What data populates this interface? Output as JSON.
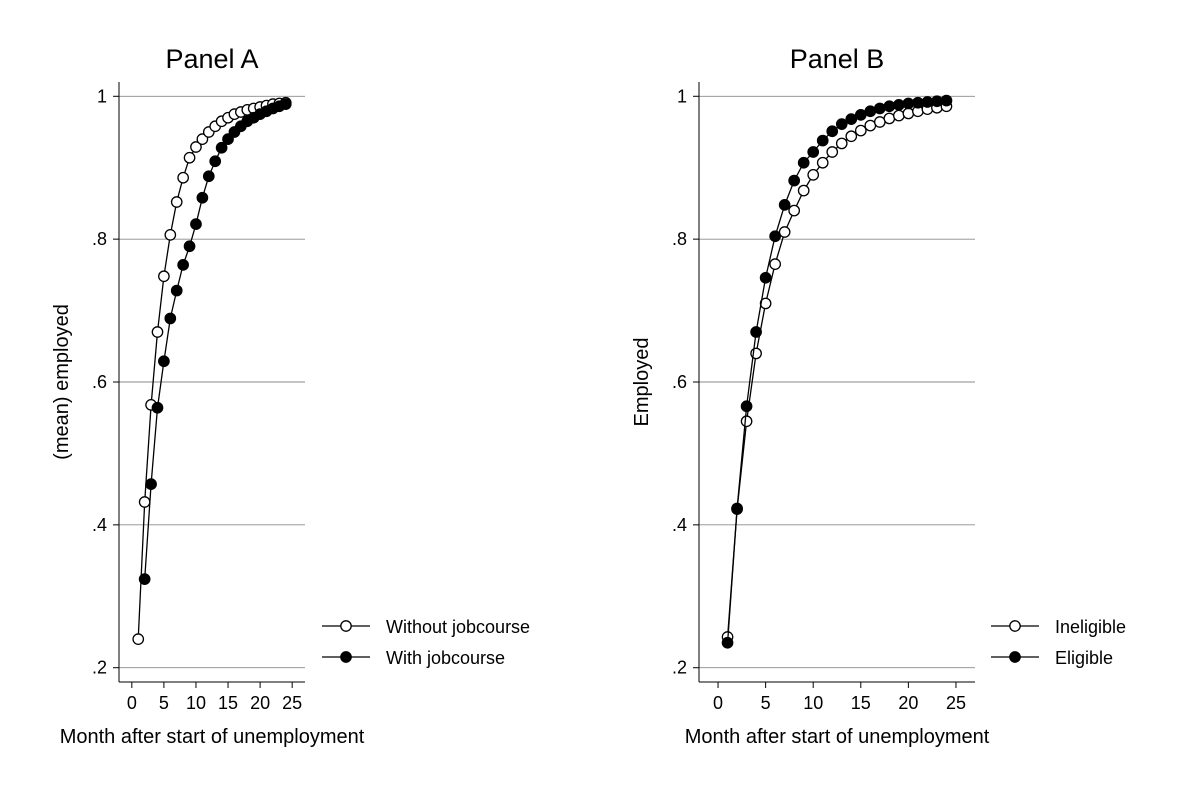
{
  "chart_data": [
    {
      "type": "line",
      "title": "Panel A",
      "xlabel": "Month after start of unemployment",
      "ylabel": "(mean) employed",
      "xlim": [
        -2,
        27
      ],
      "ylim": [
        0.18,
        1.02
      ],
      "xticks": [
        0,
        5,
        10,
        15,
        20,
        25
      ],
      "xtick_labels": [
        "0",
        "5",
        "10",
        "15",
        "20",
        "25"
      ],
      "yticks": [
        0.2,
        0.4,
        0.6,
        0.8,
        1.0
      ],
      "ytick_labels": [
        ".2",
        ".4",
        ".6",
        ".8",
        "1"
      ],
      "grid": true,
      "legend_position": "right",
      "series": [
        {
          "name": "Without jobcourse",
          "marker": "hollow-circle",
          "x": [
            1,
            2,
            3,
            4,
            5,
            6,
            7,
            8,
            9,
            10,
            11,
            12,
            13,
            14,
            15,
            16,
            17,
            18,
            19,
            20,
            21,
            22,
            23,
            24
          ],
          "y": [
            0.24,
            0.432,
            0.568,
            0.67,
            0.748,
            0.806,
            0.852,
            0.886,
            0.914,
            0.929,
            0.94,
            0.95,
            0.958,
            0.965,
            0.97,
            0.975,
            0.978,
            0.981,
            0.983,
            0.985,
            0.987,
            0.989,
            0.99,
            0.991
          ]
        },
        {
          "name": "With jobcourse",
          "marker": "filled-circle",
          "x": [
            2,
            3,
            4,
            5,
            6,
            7,
            8,
            9,
            10,
            11,
            12,
            13,
            14,
            15,
            16,
            17,
            18,
            19,
            20,
            21,
            22,
            23,
            24
          ],
          "y": [
            0.324,
            0.457,
            0.564,
            0.629,
            0.689,
            0.728,
            0.764,
            0.79,
            0.821,
            0.858,
            0.888,
            0.909,
            0.928,
            0.94,
            0.95,
            0.958,
            0.965,
            0.97,
            0.975,
            0.979,
            0.983,
            0.986,
            0.989
          ]
        }
      ]
    },
    {
      "type": "line",
      "title": "Panel B",
      "xlabel": "Month after start of unemployment",
      "ylabel": "Employed",
      "xlim": [
        -2,
        27
      ],
      "ylim": [
        0.18,
        1.02
      ],
      "xticks": [
        0,
        5,
        10,
        15,
        20,
        25
      ],
      "xtick_labels": [
        "0",
        "5",
        "10",
        "15",
        "20",
        "25"
      ],
      "yticks": [
        0.2,
        0.4,
        0.6,
        0.8,
        1.0
      ],
      "ytick_labels": [
        ".2",
        ".4",
        ".6",
        ".8",
        "1"
      ],
      "grid": true,
      "legend_position": "right",
      "series": [
        {
          "name": "Ineligible",
          "marker": "hollow-circle",
          "x": [
            1,
            2,
            3,
            4,
            5,
            6,
            7,
            8,
            9,
            10,
            11,
            12,
            13,
            14,
            15,
            16,
            17,
            18,
            19,
            20,
            21,
            22,
            23,
            24
          ],
          "y": [
            0.243,
            0.422,
            0.545,
            0.64,
            0.71,
            0.765,
            0.81,
            0.84,
            0.868,
            0.89,
            0.907,
            0.922,
            0.934,
            0.944,
            0.952,
            0.959,
            0.964,
            0.969,
            0.973,
            0.976,
            0.979,
            0.982,
            0.984,
            0.986
          ]
        },
        {
          "name": "Eligible",
          "marker": "filled-circle",
          "x": [
            1,
            2,
            3,
            4,
            5,
            6,
            7,
            8,
            9,
            10,
            11,
            12,
            13,
            14,
            15,
            16,
            17,
            18,
            19,
            20,
            21,
            22,
            23,
            24
          ],
          "y": [
            0.235,
            0.423,
            0.566,
            0.67,
            0.746,
            0.804,
            0.848,
            0.882,
            0.907,
            0.922,
            0.938,
            0.951,
            0.961,
            0.968,
            0.974,
            0.979,
            0.983,
            0.986,
            0.988,
            0.99,
            0.991,
            0.992,
            0.993,
            0.994
          ]
        }
      ]
    }
  ]
}
